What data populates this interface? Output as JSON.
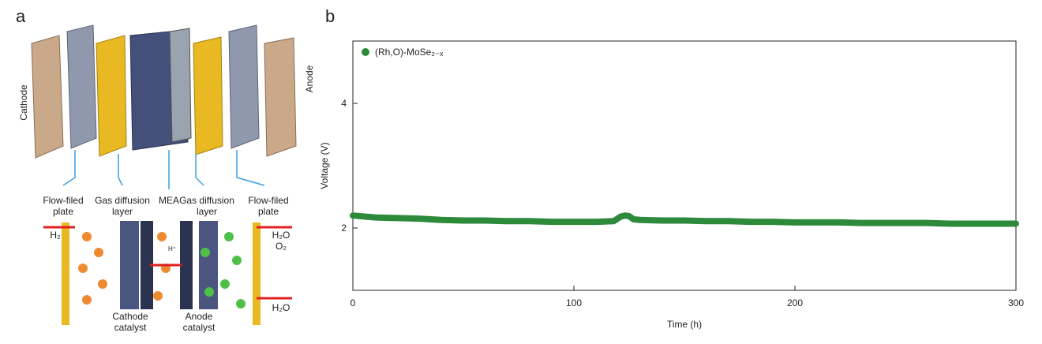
{
  "panel_a": {
    "letter": "a",
    "cathode": "Cathode",
    "anode": "Anode",
    "flow_field_left": [
      "Flow-filed",
      "plate"
    ],
    "gas_diffusion_left": [
      "Gas diffusion",
      "layer"
    ],
    "mea": "MEA",
    "gas_diffusion_right": [
      "Gas diffusion",
      "layer"
    ],
    "flow_field_right": [
      "Flow-filed",
      "plate"
    ],
    "h2": "H₂",
    "h2o_top": "H₂O",
    "o2": "O₂",
    "h2o_bottom": "H₂O",
    "proton": "H⁺",
    "cathode_catalyst": [
      "Cathode",
      "catalyst"
    ],
    "anode_catalyst": [
      "Anode",
      "catalyst"
    ]
  },
  "chart_data": {
    "type": "line",
    "panel_letter": "b",
    "x_label": "Time (h)",
    "y_label": "Voltage (V)",
    "x": [
      0,
      10,
      20,
      30,
      40,
      50,
      60,
      70,
      80,
      90,
      100,
      110,
      118,
      121,
      123,
      125,
      127,
      130,
      140,
      150,
      160,
      170,
      180,
      190,
      200,
      210,
      220,
      230,
      240,
      250,
      260,
      270,
      280,
      290,
      300
    ],
    "series": [
      {
        "name": "(Rh,O)-MoSe₂₋ₓ",
        "color": "#2e8a3b",
        "values": [
          2.2,
          2.17,
          2.16,
          2.15,
          2.13,
          2.12,
          2.12,
          2.11,
          2.11,
          2.1,
          2.1,
          2.1,
          2.11,
          2.18,
          2.2,
          2.19,
          2.14,
          2.13,
          2.12,
          2.12,
          2.11,
          2.11,
          2.1,
          2.1,
          2.09,
          2.09,
          2.09,
          2.08,
          2.08,
          2.08,
          2.08,
          2.07,
          2.07,
          2.07,
          2.07
        ]
      }
    ],
    "xlim": [
      0,
      300
    ],
    "xticks": [
      0,
      100,
      200,
      300
    ],
    "ylim": [
      1,
      5
    ],
    "yticks": [
      2,
      4
    ],
    "legend": "upper left"
  }
}
